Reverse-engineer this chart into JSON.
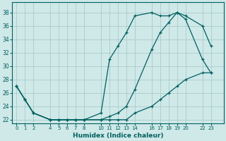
{
  "xlabel": "Humidex (Indice chaleur)",
  "background_color": "#cfe8e8",
  "grid_color": "#b8d8d8",
  "line_color": "#006060",
  "x_ticks": [
    0,
    1,
    2,
    4,
    5,
    6,
    7,
    8,
    10,
    11,
    12,
    13,
    14,
    16,
    17,
    18,
    19,
    20,
    22,
    23
  ],
  "line1_x": [
    0,
    1,
    2,
    4,
    5,
    6,
    7,
    8,
    10,
    11,
    12,
    13,
    14,
    16,
    17,
    18,
    19,
    20,
    22,
    23
  ],
  "line1_y": [
    27,
    25,
    23,
    22,
    22,
    22,
    22,
    22,
    23,
    31,
    33,
    35,
    37.5,
    38,
    37.5,
    37.5,
    38,
    37,
    31,
    29
  ],
  "line2_x": [
    0,
    1,
    2,
    4,
    5,
    6,
    7,
    8,
    10,
    11,
    12,
    13,
    14,
    16,
    17,
    18,
    19,
    20,
    22,
    23
  ],
  "line2_y": [
    27,
    25,
    23,
    22,
    22,
    22,
    22,
    22,
    22,
    22.5,
    23,
    24,
    26.5,
    32.5,
    35,
    36.5,
    38,
    37.5,
    36,
    33
  ],
  "line3_x": [
    0,
    1,
    2,
    4,
    5,
    6,
    7,
    8,
    10,
    11,
    12,
    13,
    14,
    16,
    17,
    18,
    19,
    20,
    22,
    23
  ],
  "line3_y": [
    27,
    25,
    23,
    22,
    22,
    22,
    22,
    22,
    22,
    22,
    22,
    22,
    23,
    24,
    25,
    26,
    27,
    28,
    29,
    29
  ],
  "ylim": [
    21.5,
    39.5
  ],
  "yticks": [
    22,
    24,
    26,
    28,
    30,
    32,
    34,
    36,
    38
  ],
  "xlim": [
    -0.5,
    24.5
  ]
}
